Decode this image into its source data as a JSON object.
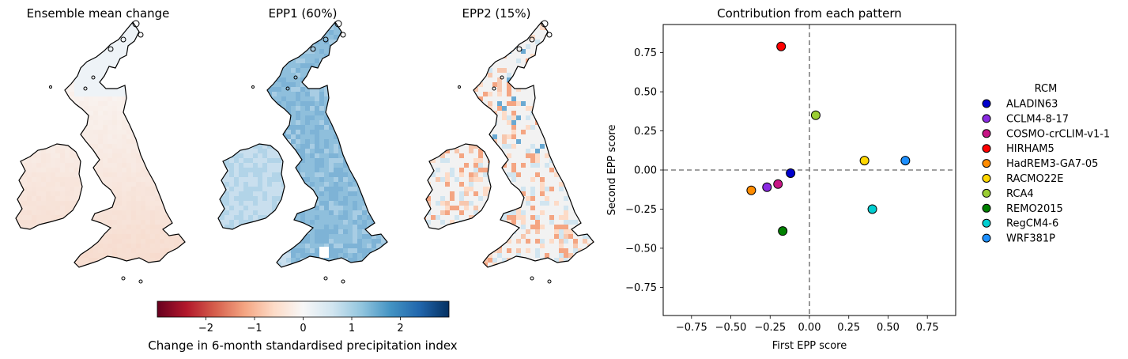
{
  "maps": [
    {
      "title": "Ensemble mean change",
      "style": "mean"
    },
    {
      "title": "EPP1 (60%)",
      "style": "epp1"
    },
    {
      "title": "EPP2 (15%)",
      "style": "epp2"
    }
  ],
  "colorbar": {
    "label": "Change in 6-month standardised precipitation index",
    "range": [
      -3,
      3
    ],
    "ticks": [
      "−2",
      "−1",
      "0",
      "1",
      "2"
    ],
    "tick_values": [
      -2,
      -1,
      0,
      1,
      2
    ],
    "colors": [
      "#67001f",
      "#b2182b",
      "#d6604d",
      "#f4a582",
      "#fddbc7",
      "#f7f7f7",
      "#d1e5f0",
      "#92c5de",
      "#4393c3",
      "#2166ac",
      "#053061"
    ]
  },
  "chart_data": {
    "type": "scatter",
    "title": "Contribution from each pattern",
    "xlabel": "First EPP score",
    "ylabel": "Second EPP score",
    "xlim": [
      -0.93,
      0.93
    ],
    "ylim": [
      -0.93,
      0.93
    ],
    "xticks": [
      "−0.75",
      "−0.50",
      "−0.25",
      "0.00",
      "0.25",
      "0.50",
      "0.75"
    ],
    "xtick_values": [
      -0.75,
      -0.5,
      -0.25,
      0,
      0.25,
      0.5,
      0.75
    ],
    "yticks": [
      "0.75",
      "0.50",
      "0.25",
      "0.00",
      "−0.25",
      "−0.50",
      "−0.75"
    ],
    "ytick_values": [
      0.75,
      0.5,
      0.25,
      0,
      -0.25,
      -0.5,
      -0.75
    ],
    "reference_lines": {
      "x": 0,
      "y": 0,
      "style": "dashed",
      "color": "#808080"
    },
    "legend": {
      "title": "RCM",
      "placement": "right-outside"
    },
    "series": [
      {
        "name": "ALADIN63",
        "x": -0.12,
        "y": -0.02,
        "color": "#0000cd"
      },
      {
        "name": "CCLM4-8-17",
        "x": -0.27,
        "y": -0.11,
        "color": "#8a2be2"
      },
      {
        "name": "COSMO-crCLIM-v1-1",
        "x": -0.2,
        "y": -0.09,
        "color": "#c71585"
      },
      {
        "name": "HIRHAM5",
        "x": -0.18,
        "y": 0.79,
        "color": "#ff0000"
      },
      {
        "name": "HadREM3-GA7-05",
        "x": -0.37,
        "y": -0.13,
        "color": "#ff8c00"
      },
      {
        "name": "RACMO22E",
        "x": 0.35,
        "y": 0.06,
        "color": "#ffd700"
      },
      {
        "name": "RCA4",
        "x": 0.04,
        "y": 0.35,
        "color": "#9acd32"
      },
      {
        "name": "REMO2015",
        "x": -0.17,
        "y": -0.39,
        "color": "#008000"
      },
      {
        "name": "RegCM4-6",
        "x": 0.4,
        "y": -0.25,
        "color": "#00ced1"
      },
      {
        "name": "WRF381P",
        "x": 0.61,
        "y": 0.06,
        "color": "#1e90ff"
      }
    ]
  }
}
